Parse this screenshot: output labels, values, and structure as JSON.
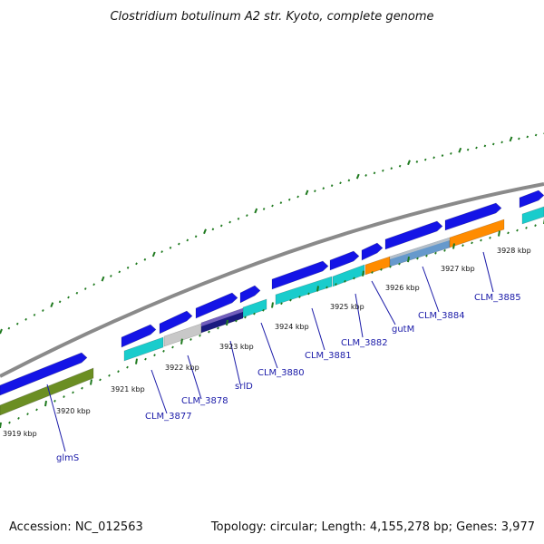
{
  "title": "Clostridium botulinum A2 str. Kyoto, complete genome",
  "footer": {
    "accession": "Accession: NC_012563",
    "summary": "Topology: circular; Length: 4,155,278 bp; Genes: 3,977"
  },
  "scale_labels": [
    "3919 kbp",
    "3920 kbp",
    "3921 kbp",
    "3922 kbp",
    "3923 kbp",
    "3924 kbp",
    "3925 kbp",
    "3926 kbp",
    "3927 kbp",
    "3928 kbp"
  ],
  "gene_labels": [
    "glmS",
    "CLM_3877",
    "CLM_3878",
    "srlD",
    "CLM_3880",
    "CLM_3881",
    "CLM_3882",
    "gutM",
    "CLM_3884",
    "CLM_3885"
  ],
  "colors": {
    "backbone": "#8a8a8a",
    "cds_forward": "#1414e6",
    "ticks": "#1f7a1f",
    "cat_green": "#6b8e23",
    "cat_cyan": "#19cccc",
    "cat_gray": "#c8c8c8",
    "cat_navy": "#1a1a80",
    "cat_purple": "#8870cc",
    "cat_orange": "#ff8c00",
    "cat_steel": "#6699cc",
    "leader": "#1a1aa8"
  }
}
